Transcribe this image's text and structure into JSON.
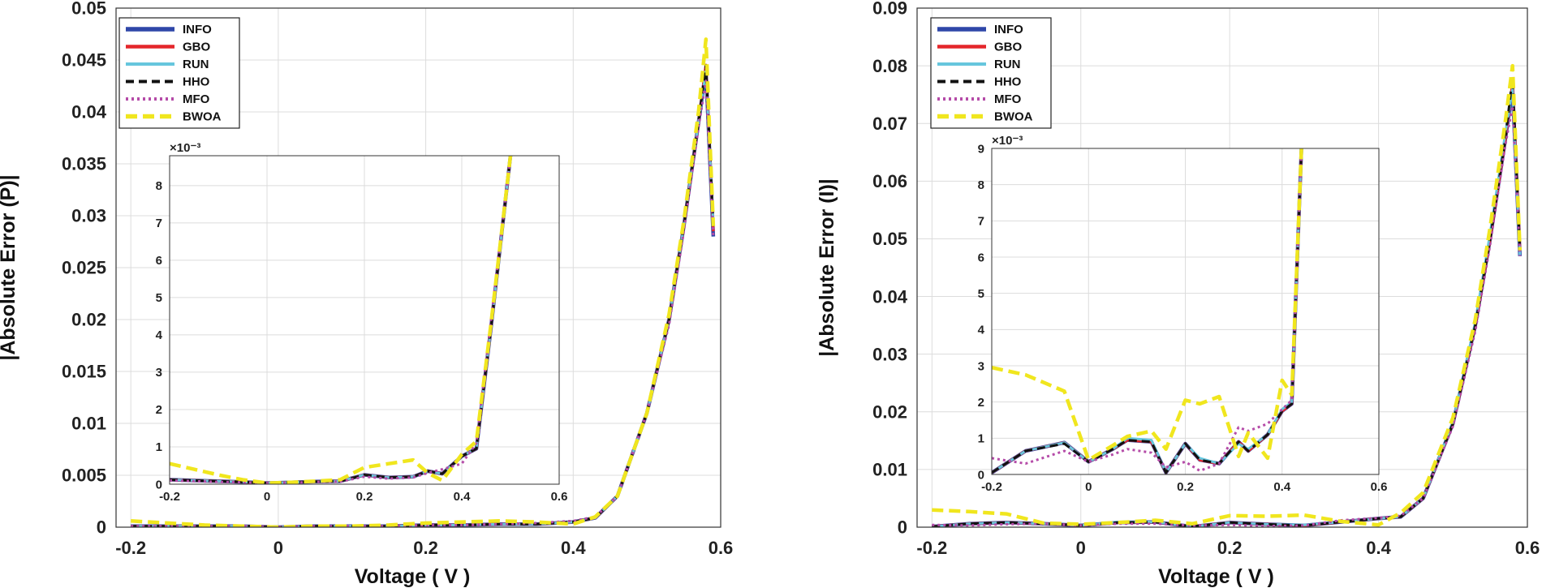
{
  "colors": {
    "INFO": "#2f47a8",
    "GBO": "#e4262b",
    "RUN": "#66c6dd",
    "HHO": "#111111",
    "MFO": "#b54ba8",
    "BWOA": "#f0e61e",
    "grid": "#dcdcdc"
  },
  "chart_data": [
    {
      "type": "line",
      "title": "",
      "xlabel": "Voltage ( V )",
      "ylabel": "|Absolute Error (P)|",
      "xlim": [
        -0.22,
        0.6
      ],
      "ylim": [
        0,
        0.05
      ],
      "xticks": [
        "-0.2",
        "0",
        "0.2",
        "0.4",
        "0.6"
      ],
      "yticks": [
        "0",
        "0.005",
        "0.01",
        "0.015",
        "0.02",
        "0.025",
        "0.03",
        "0.035",
        "0.04",
        "0.045",
        "0.05"
      ],
      "legend": {
        "position": "top-left",
        "entries": [
          "INFO",
          "GBO",
          "RUN",
          "HHO",
          "MFO",
          "BWOA"
        ]
      },
      "x": [
        -0.2,
        -0.15,
        -0.1,
        -0.05,
        0.0,
        0.05,
        0.1,
        0.15,
        0.2,
        0.25,
        0.3,
        0.35,
        0.4,
        0.43,
        0.46,
        0.5,
        0.53,
        0.55,
        0.57,
        0.58,
        0.59
      ],
      "series": [
        {
          "name": "INFO",
          "values": [
            0.0001,
            0.0001,
            0.0001,
            0.0001,
            0.0,
            0.0001,
            0.0001,
            0.0001,
            0.0002,
            0.0002,
            0.0003,
            0.0003,
            0.0005,
            0.0009,
            0.003,
            0.011,
            0.02,
            0.029,
            0.039,
            0.044,
            0.028
          ]
        },
        {
          "name": "GBO",
          "values": [
            0.0001,
            0.0001,
            0.0001,
            0.0001,
            0.0,
            0.0001,
            0.0001,
            0.0001,
            0.0002,
            0.0002,
            0.0003,
            0.0003,
            0.0005,
            0.0009,
            0.003,
            0.011,
            0.02,
            0.029,
            0.039,
            0.0445,
            0.0285
          ]
        },
        {
          "name": "RUN",
          "values": [
            0.0001,
            0.0001,
            0.0001,
            0.0001,
            0.0,
            0.0001,
            0.0001,
            0.0001,
            0.0002,
            0.0002,
            0.0003,
            0.0003,
            0.0005,
            0.0009,
            0.003,
            0.011,
            0.02,
            0.029,
            0.039,
            0.044,
            0.029
          ]
        },
        {
          "name": "HHO",
          "values": [
            0.0001,
            0.0001,
            0.0001,
            0.0001,
            0.0,
            0.0001,
            0.0001,
            0.0001,
            0.0002,
            0.0002,
            0.0003,
            0.0003,
            0.0005,
            0.0009,
            0.003,
            0.011,
            0.02,
            0.029,
            0.039,
            0.0445,
            0.029
          ]
        },
        {
          "name": "MFO",
          "values": [
            0.0001,
            0.0001,
            0.0001,
            0.0001,
            0.0,
            0.0001,
            0.0001,
            0.0001,
            0.0002,
            0.0002,
            0.0003,
            0.0004,
            0.0006,
            0.001,
            0.003,
            0.011,
            0.0195,
            0.0285,
            0.0385,
            0.043,
            0.028
          ]
        },
        {
          "name": "BWOA",
          "values": [
            0.0006,
            0.0004,
            0.0002,
            0.0001,
            0.0,
            0.0001,
            0.0001,
            0.0002,
            0.0004,
            0.0005,
            0.0006,
            0.0005,
            0.0003,
            0.001,
            0.003,
            0.011,
            0.0205,
            0.0295,
            0.04,
            0.047,
            0.029
          ]
        }
      ],
      "inset": {
        "exponent_label": "×10⁻³",
        "xlim": [
          -0.2,
          0.6
        ],
        "ylim": [
          0,
          8.8
        ],
        "xticks": [
          "-0.2",
          "0",
          "0.2",
          "0.4",
          "0.6"
        ],
        "yticks": [
          "0",
          "1",
          "2",
          "3",
          "4",
          "5",
          "6",
          "7",
          "8"
        ],
        "x": [
          -0.2,
          -0.15,
          -0.1,
          -0.05,
          0.0,
          0.05,
          0.1,
          0.15,
          0.2,
          0.25,
          0.3,
          0.33,
          0.36,
          0.4,
          0.43,
          0.46,
          0.5
        ],
        "series": [
          {
            "name": "INFO",
            "values": [
              0.12,
              0.1,
              0.08,
              0.06,
              0.03,
              0.05,
              0.07,
              0.08,
              0.25,
              0.18,
              0.2,
              0.35,
              0.28,
              0.75,
              0.95,
              4.2,
              8.8
            ]
          },
          {
            "name": "GBO",
            "values": [
              0.12,
              0.1,
              0.08,
              0.06,
              0.03,
              0.05,
              0.07,
              0.08,
              0.25,
              0.18,
              0.2,
              0.35,
              0.28,
              0.75,
              0.95,
              4.2,
              8.8
            ]
          },
          {
            "name": "RUN",
            "values": [
              0.12,
              0.1,
              0.08,
              0.06,
              0.03,
              0.05,
              0.07,
              0.08,
              0.25,
              0.18,
              0.2,
              0.35,
              0.28,
              0.75,
              0.95,
              4.2,
              8.8
            ]
          },
          {
            "name": "HHO",
            "values": [
              0.12,
              0.1,
              0.08,
              0.06,
              0.03,
              0.05,
              0.07,
              0.08,
              0.25,
              0.18,
              0.2,
              0.35,
              0.28,
              0.75,
              0.95,
              4.2,
              8.8
            ]
          },
          {
            "name": "MFO",
            "values": [
              0.1,
              0.08,
              0.06,
              0.05,
              0.03,
              0.04,
              0.06,
              0.07,
              0.2,
              0.15,
              0.18,
              0.3,
              0.4,
              0.55,
              1.1,
              4.4,
              8.8
            ]
          },
          {
            "name": "BWOA",
            "values": [
              0.55,
              0.4,
              0.25,
              0.12,
              0.03,
              0.05,
              0.08,
              0.12,
              0.45,
              0.55,
              0.65,
              0.3,
              0.1,
              0.8,
              1.15,
              4.3,
              8.8
            ]
          }
        ]
      }
    },
    {
      "type": "line",
      "title": "",
      "xlabel": "Voltage ( V )",
      "ylabel": "|Absolute Error (I)|",
      "xlim": [
        -0.22,
        0.6
      ],
      "ylim": [
        0,
        0.09
      ],
      "xticks": [
        "-0.2",
        "0",
        "0.2",
        "0.4",
        "0.6"
      ],
      "yticks": [
        "0",
        "0.01",
        "0.02",
        "0.03",
        "0.04",
        "0.05",
        "0.06",
        "0.07",
        "0.08",
        "0.09"
      ],
      "legend": {
        "position": "top-left",
        "entries": [
          "INFO",
          "GBO",
          "RUN",
          "HHO",
          "MFO",
          "BWOA"
        ]
      },
      "x": [
        -0.2,
        -0.15,
        -0.1,
        -0.05,
        0.0,
        0.05,
        0.1,
        0.15,
        0.2,
        0.25,
        0.3,
        0.35,
        0.4,
        0.43,
        0.46,
        0.5,
        0.53,
        0.55,
        0.57,
        0.58,
        0.59
      ],
      "series": [
        {
          "name": "INFO",
          "values": [
            0.0001,
            0.0006,
            0.0008,
            0.0006,
            0.0003,
            0.0008,
            0.0009,
            0.0001,
            0.0008,
            0.0005,
            0.0003,
            0.0009,
            0.0015,
            0.0018,
            0.005,
            0.018,
            0.035,
            0.05,
            0.067,
            0.076,
            0.047
          ]
        },
        {
          "name": "GBO",
          "values": [
            0.0001,
            0.0006,
            0.0008,
            0.0006,
            0.0003,
            0.0008,
            0.0009,
            0.0001,
            0.0008,
            0.0005,
            0.0003,
            0.0009,
            0.0015,
            0.0018,
            0.005,
            0.018,
            0.035,
            0.05,
            0.067,
            0.077,
            0.048
          ]
        },
        {
          "name": "RUN",
          "values": [
            0.0001,
            0.0006,
            0.0008,
            0.0006,
            0.0003,
            0.0009,
            0.0009,
            0.0001,
            0.0008,
            0.0005,
            0.0004,
            0.0009,
            0.0015,
            0.0018,
            0.005,
            0.0182,
            0.0355,
            0.051,
            0.068,
            0.076,
            0.047
          ]
        },
        {
          "name": "HHO",
          "values": [
            0.0001,
            0.0006,
            0.0008,
            0.0006,
            0.0003,
            0.0008,
            0.0009,
            0.0001,
            0.0008,
            0.0005,
            0.0003,
            0.0009,
            0.0015,
            0.0018,
            0.005,
            0.018,
            0.035,
            0.05,
            0.067,
            0.078,
            0.048
          ]
        },
        {
          "name": "MFO",
          "values": [
            0.0004,
            0.0003,
            0.0005,
            0.0006,
            0.0003,
            0.0006,
            0.0006,
            0.0003,
            0.0004,
            0.0002,
            0.0003,
            0.0012,
            0.0016,
            0.002,
            0.005,
            0.0175,
            0.034,
            0.049,
            0.066,
            0.073,
            0.047
          ]
        },
        {
          "name": "BWOA",
          "values": [
            0.003,
            0.0027,
            0.0023,
            0.0007,
            0.0005,
            0.0008,
            0.0012,
            0.0006,
            0.002,
            0.0019,
            0.0021,
            0.001,
            0.0004,
            0.0025,
            0.006,
            0.019,
            0.036,
            0.052,
            0.07,
            0.08,
            0.048
          ]
        }
      ],
      "inset": {
        "exponent_label": "×10⁻³",
        "xlim": [
          -0.2,
          0.6
        ],
        "ylim": [
          0,
          9
        ],
        "xticks": [
          "-0.2",
          "0",
          "0.2",
          "0.4",
          "0.6"
        ],
        "yticks": [
          "0",
          "1",
          "2",
          "3",
          "4",
          "5",
          "6",
          "7",
          "8",
          "9"
        ],
        "x": [
          -0.2,
          -0.13,
          -0.05,
          0.0,
          0.05,
          0.08,
          0.13,
          0.16,
          0.2,
          0.23,
          0.27,
          0.31,
          0.33,
          0.37,
          0.4,
          0.42,
          0.44
        ],
        "series": [
          {
            "name": "INFO",
            "values": [
              0.05,
              0.65,
              0.88,
              0.35,
              0.7,
              0.95,
              0.9,
              0.05,
              0.85,
              0.4,
              0.3,
              0.9,
              0.65,
              1.1,
              1.75,
              1.95,
              9.0
            ]
          },
          {
            "name": "GBO",
            "values": [
              0.05,
              0.65,
              0.88,
              0.35,
              0.7,
              0.95,
              0.9,
              0.05,
              0.85,
              0.4,
              0.3,
              0.9,
              0.65,
              1.1,
              1.75,
              1.95,
              9.0
            ]
          },
          {
            "name": "RUN",
            "values": [
              0.05,
              0.65,
              0.88,
              0.35,
              0.7,
              1.0,
              0.95,
              0.05,
              0.85,
              0.45,
              0.3,
              0.85,
              0.7,
              1.1,
              1.8,
              2.0,
              9.0
            ]
          },
          {
            "name": "HHO",
            "values": [
              0.05,
              0.65,
              0.85,
              0.35,
              0.7,
              0.95,
              0.9,
              0.05,
              0.85,
              0.4,
              0.3,
              0.9,
              0.65,
              1.1,
              1.75,
              1.95,
              9.0
            ]
          },
          {
            "name": "MFO",
            "values": [
              0.45,
              0.3,
              0.65,
              0.35,
              0.55,
              0.7,
              0.6,
              0.2,
              0.35,
              0.1,
              0.3,
              1.3,
              1.2,
              1.4,
              1.8,
              2.05,
              9.0
            ]
          },
          {
            "name": "BWOA",
            "values": [
              2.95,
              2.75,
              2.3,
              0.4,
              0.8,
              1.05,
              1.2,
              0.7,
              2.05,
              1.95,
              2.15,
              0.5,
              1.15,
              0.45,
              2.6,
              2.2,
              9.0
            ]
          }
        ]
      }
    }
  ]
}
